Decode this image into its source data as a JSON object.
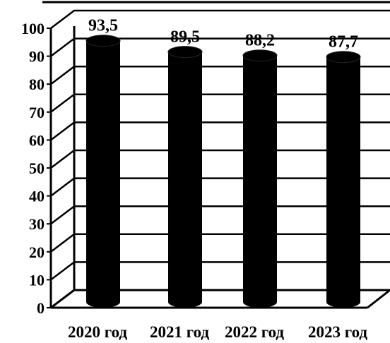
{
  "chart_data": {
    "type": "bar",
    "style": "3d-cylinder",
    "categories": [
      "2020 год",
      "2021 год",
      "2022 год",
      "2023 год"
    ],
    "values": [
      93.5,
      89.5,
      88.2,
      87.7
    ],
    "data_labels": [
      "93,5",
      "89,5",
      "88,2",
      "87,7"
    ],
    "y_ticks": [
      "0",
      "10",
      "20",
      "30",
      "40",
      "50",
      "60",
      "70",
      "80",
      "90",
      "100"
    ],
    "ylim": [
      0,
      100
    ],
    "grid": true,
    "legend": "none",
    "colors": {
      "bar": "#000000",
      "grid": "#000000",
      "background": "#ffffff"
    }
  }
}
